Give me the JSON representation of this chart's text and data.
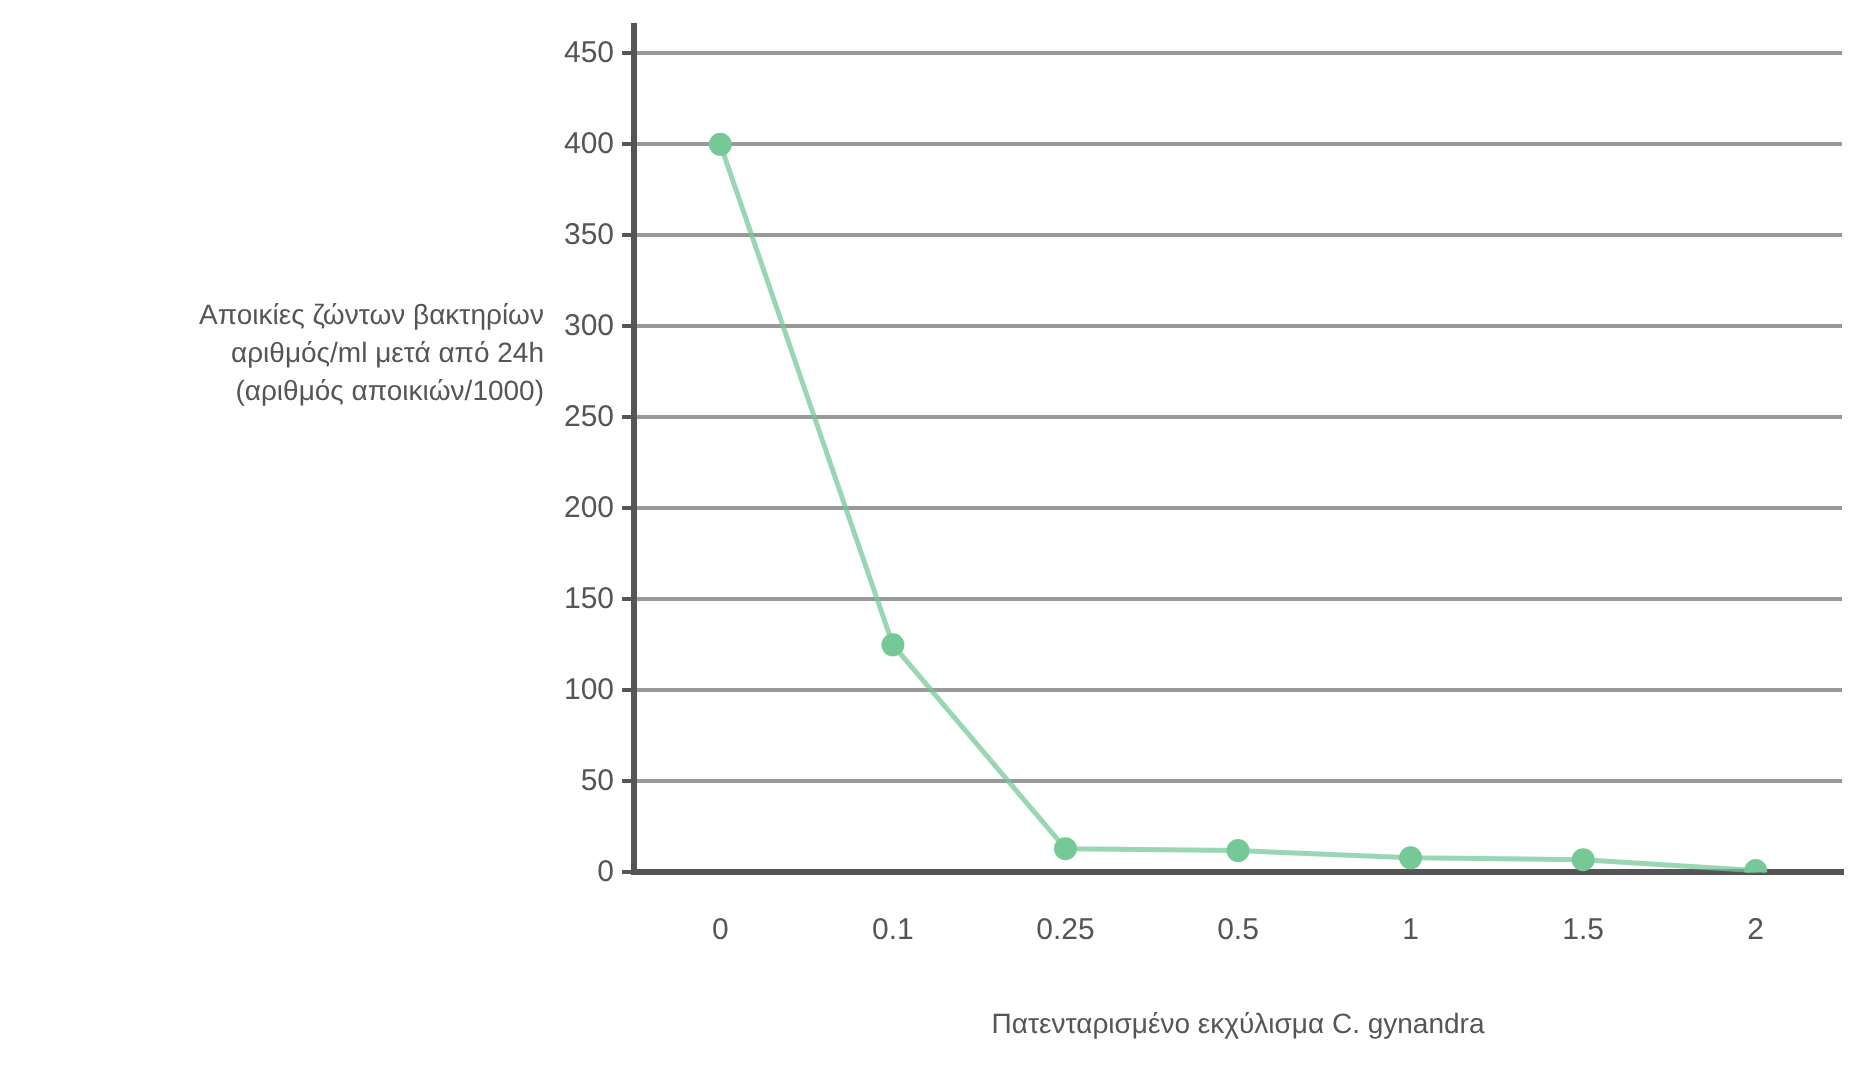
{
  "chart_data": {
    "type": "line",
    "xlabel": "Πατενταρισμένο εκχύλισμα C. gynandra",
    "ylabel": "Αποικίες ζώντων βακτηρίων\nαριθμός/ml μετά από 24h\n(αριθμός αποικιών/1000)",
    "categories": [
      "0",
      "0.1",
      "0.25",
      "0.5",
      "1",
      "1.5",
      "2"
    ],
    "series": [
      {
        "color": "#74c997",
        "values": [
          400,
          125,
          13,
          12,
          8,
          7,
          1
        ]
      }
    ],
    "ylim": [
      0,
      465
    ],
    "yticks": [
      0,
      50,
      100,
      150,
      200,
      250,
      300,
      350,
      400,
      450
    ],
    "grid": "y",
    "legend": false,
    "marker": "circle",
    "line_style": "solid"
  }
}
